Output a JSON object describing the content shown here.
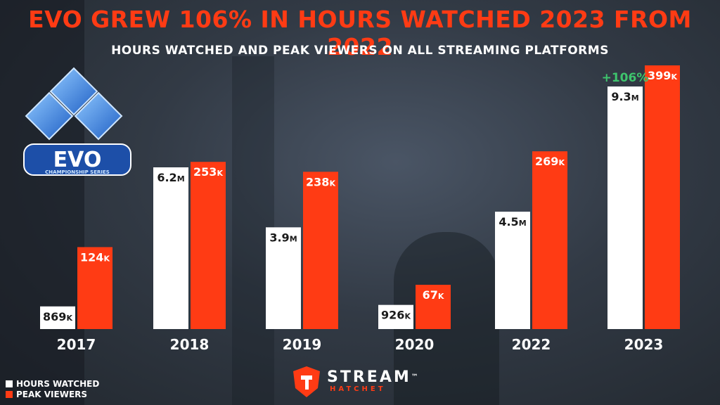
{
  "title": "EVO GREW 106% IN HOURS WATCHED 2023 FROM 2022",
  "subtitle": "HOURS WATCHED AND PEAK VIEWERS ON ALL STREAMING PLATFORMS",
  "logo": {
    "name": "EVO",
    "tagline": "CHAMPIONSHIP SERIES"
  },
  "legend": {
    "hours_label": "HOURS WATCHED",
    "peak_label": "PEAK VIEWERS"
  },
  "brand": {
    "name": "STREAM",
    "tm": "™",
    "sub": "HATCHET"
  },
  "colors": {
    "hours": "#ffffff",
    "peak": "#ff3b14",
    "title": "#ff3b14",
    "growth": "#3ec46d"
  },
  "chart_data": {
    "type": "bar",
    "title": "EVO GREW 106% IN HOURS WATCHED 2023 FROM 2022",
    "categories": [
      "2017",
      "2018",
      "2019",
      "2020",
      "2022",
      "2023"
    ],
    "series": [
      {
        "name": "HOURS WATCHED",
        "values": [
          0.869,
          6.2,
          3.9,
          0.926,
          4.5,
          9.3
        ],
        "unit": "M",
        "labels": [
          [
            "869",
            "K"
          ],
          [
            "6.2",
            "M"
          ],
          [
            "3.9",
            "M"
          ],
          [
            "926",
            "K"
          ],
          [
            "4.5",
            "M"
          ],
          [
            "9.3",
            "M"
          ]
        ]
      },
      {
        "name": "PEAK VIEWERS",
        "values": [
          124,
          253,
          238,
          67,
          269,
          399
        ],
        "unit": "K",
        "labels": [
          [
            "124",
            "K"
          ],
          [
            "253",
            "K"
          ],
          [
            "238",
            "K"
          ],
          [
            "67",
            "K"
          ],
          [
            "269",
            "K"
          ],
          [
            "399",
            "K"
          ]
        ]
      }
    ],
    "annotations": [
      {
        "category": "2023",
        "series": "HOURS WATCHED",
        "text": "+106%"
      }
    ],
    "legend_position": "bottom-left"
  }
}
